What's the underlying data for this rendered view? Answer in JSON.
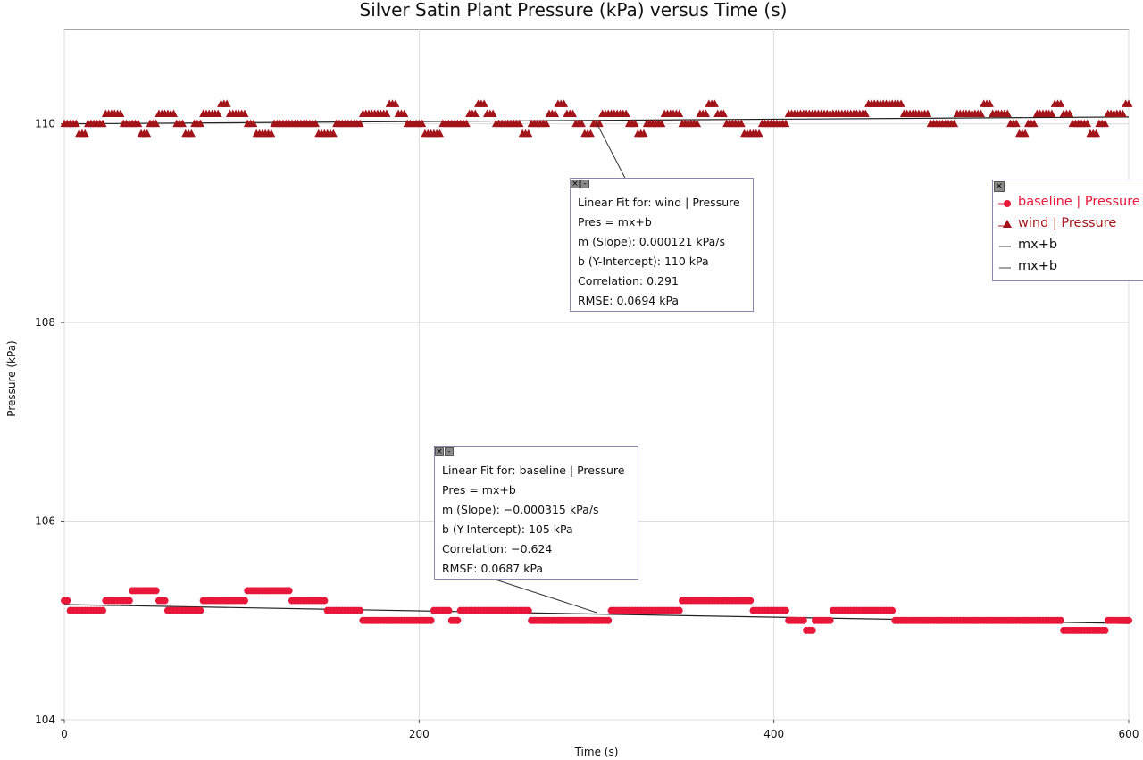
{
  "chart_data": {
    "type": "scatter",
    "title": "Silver Satin Plant Pressure (kPa) versus Time (s)",
    "xlabel": "Time (s)",
    "ylabel": "Pressure (kPa)",
    "xlim": [
      0,
      600
    ],
    "ylim": [
      104,
      110.95
    ],
    "x_ticks": [
      0,
      200,
      400,
      600
    ],
    "y_ticks": [
      104,
      106,
      108,
      110
    ],
    "grid": true,
    "legend_position": "right",
    "series": [
      {
        "name": "baseline | Pressure",
        "marker": "circle",
        "color": "#e8173a",
        "x": [
          0,
          5,
          10,
          15,
          20,
          25,
          30,
          35,
          40,
          45,
          50,
          55,
          60,
          65,
          70,
          75,
          80,
          85,
          90,
          95,
          100,
          105,
          110,
          115,
          120,
          125,
          130,
          135,
          140,
          145,
          150,
          155,
          160,
          165,
          170,
          175,
          180,
          185,
          190,
          195,
          200,
          205,
          210,
          215,
          220,
          225,
          230,
          235,
          240,
          245,
          250,
          255,
          260,
          265,
          270,
          275,
          280,
          285,
          290,
          295,
          300,
          305,
          310,
          315,
          320,
          325,
          330,
          335,
          340,
          345,
          350,
          355,
          360,
          365,
          370,
          375,
          380,
          385,
          390,
          395,
          400,
          405,
          410,
          415,
          420,
          425,
          430,
          435,
          440,
          445,
          450,
          455,
          460,
          465,
          470,
          475,
          480,
          485,
          490,
          495,
          500,
          505,
          510,
          515,
          520,
          525,
          530,
          535,
          540,
          545,
          550,
          555,
          560,
          565,
          570,
          575,
          580,
          585,
          590,
          595,
          600
        ],
        "y": [
          105.2,
          105.1,
          105.1,
          105.1,
          105.1,
          105.2,
          105.2,
          105.2,
          105.3,
          105.3,
          105.3,
          105.2,
          105.1,
          105.1,
          105.1,
          105.1,
          105.2,
          105.2,
          105.2,
          105.2,
          105.2,
          105.3,
          105.3,
          105.3,
          105.3,
          105.3,
          105.2,
          105.2,
          105.2,
          105.2,
          105.1,
          105.1,
          105.1,
          105.1,
          105.0,
          105.0,
          105.0,
          105.0,
          105.0,
          105.0,
          105.0,
          105.0,
          105.1,
          105.1,
          105.0,
          105.1,
          105.1,
          105.1,
          105.1,
          105.1,
          105.1,
          105.1,
          105.1,
          105.0,
          105.0,
          105.0,
          105.0,
          105.0,
          105.0,
          105.0,
          105.0,
          105.0,
          105.1,
          105.1,
          105.1,
          105.1,
          105.1,
          105.1,
          105.1,
          105.1,
          105.2,
          105.2,
          105.2,
          105.2,
          105.2,
          105.2,
          105.2,
          105.2,
          105.1,
          105.1,
          105.1,
          105.1,
          105.0,
          105.0,
          104.9,
          105.0,
          105.0,
          105.1,
          105.1,
          105.1,
          105.1,
          105.1,
          105.1,
          105.1,
          105.0,
          105.0,
          105.0,
          105.0,
          105.0,
          105.0,
          105.0,
          105.0,
          105.0,
          105.0,
          105.0,
          105.0,
          105.0,
          105.0,
          105.0,
          105.0,
          105.0,
          105.0,
          105.0,
          104.9,
          104.9,
          104.9,
          104.9,
          104.9,
          105.0,
          105.0,
          105.0
        ]
      },
      {
        "name": "wind | Pressure",
        "marker": "triangle",
        "color": "#a3141a",
        "x": [
          0,
          5,
          10,
          15,
          20,
          25,
          30,
          35,
          40,
          45,
          50,
          55,
          60,
          65,
          70,
          75,
          80,
          85,
          90,
          95,
          100,
          105,
          110,
          115,
          120,
          125,
          130,
          135,
          140,
          145,
          150,
          155,
          160,
          165,
          170,
          175,
          180,
          185,
          190,
          195,
          200,
          205,
          210,
          215,
          220,
          225,
          230,
          235,
          240,
          245,
          250,
          255,
          260,
          265,
          270,
          275,
          280,
          285,
          290,
          295,
          300,
          305,
          310,
          315,
          320,
          325,
          330,
          335,
          340,
          345,
          350,
          355,
          360,
          365,
          370,
          375,
          380,
          385,
          390,
          395,
          400,
          405,
          410,
          415,
          420,
          425,
          430,
          435,
          440,
          445,
          450,
          455,
          460,
          465,
          470,
          475,
          480,
          485,
          490,
          495,
          500,
          505,
          510,
          515,
          520,
          525,
          530,
          535,
          540,
          545,
          550,
          555,
          560,
          565,
          570,
          575,
          580,
          585,
          590,
          595,
          600
        ],
        "y": [
          110.0,
          110.0,
          109.9,
          110.0,
          110.0,
          110.1,
          110.1,
          110.0,
          110.0,
          109.9,
          110.0,
          110.1,
          110.1,
          110.0,
          109.9,
          110.0,
          110.1,
          110.1,
          110.2,
          110.1,
          110.1,
          110.0,
          109.9,
          109.9,
          110.0,
          110.0,
          110.0,
          110.0,
          110.0,
          109.9,
          109.9,
          110.0,
          110.0,
          110.0,
          110.1,
          110.1,
          110.1,
          110.2,
          110.1,
          110.0,
          110.0,
          109.9,
          109.9,
          110.0,
          110.0,
          110.0,
          110.1,
          110.2,
          110.1,
          110.0,
          110.0,
          110.0,
          109.9,
          110.0,
          110.0,
          110.1,
          110.2,
          110.1,
          110.0,
          109.9,
          110.0,
          110.1,
          110.1,
          110.1,
          110.0,
          109.9,
          110.0,
          110.0,
          110.1,
          110.1,
          110.0,
          110.0,
          110.1,
          110.2,
          110.1,
          110.0,
          110.0,
          109.9,
          109.9,
          110.0,
          110.0,
          110.0,
          110.1,
          110.1,
          110.1,
          110.1,
          110.1,
          110.1,
          110.1,
          110.1,
          110.1,
          110.2,
          110.2,
          110.2,
          110.2,
          110.1,
          110.1,
          110.1,
          110.0,
          110.0,
          110.0,
          110.1,
          110.1,
          110.1,
          110.2,
          110.1,
          110.1,
          110.0,
          109.9,
          110.0,
          110.1,
          110.1,
          110.2,
          110.1,
          110.0,
          110.0,
          109.9,
          110.0,
          110.1,
          110.1,
          110.2
        ]
      },
      {
        "name": "mx+b",
        "type": "line",
        "color": "#222222",
        "x": [
          0,
          600
        ],
        "y": [
          110.0,
          110.07
        ]
      },
      {
        "name": "mx+b",
        "type": "line",
        "color": "#222222",
        "x": [
          0,
          600
        ],
        "y": [
          105.16,
          104.97
        ]
      }
    ],
    "annotations": [
      {
        "anchor": [
          300,
          110.01
        ],
        "lines": [
          "Linear Fit for: wind | Pressure",
          "Pres = mx+b",
          "m (Slope): 0.000121 kPa/s",
          "b (Y-Intercept): 110 kPa",
          "Correlation: 0.291",
          "RMSE: 0.0694 kPa"
        ]
      },
      {
        "anchor": [
          300,
          105.08
        ],
        "lines": [
          "Linear Fit for: baseline | Pressure",
          "Pres = mx+b",
          "m (Slope): −0.000315 kPa/s",
          "b (Y-Intercept): 105 kPa",
          "Correlation: −0.624",
          "RMSE: 0.0687 kPa"
        ]
      }
    ]
  }
}
